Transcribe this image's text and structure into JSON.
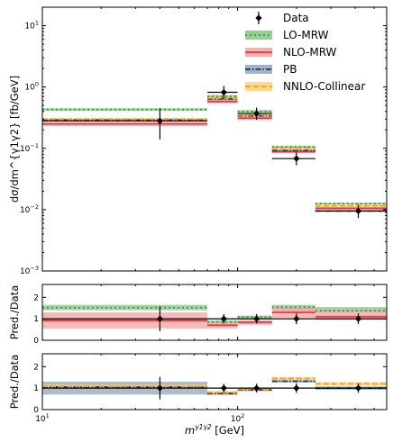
{
  "chart_data": {
    "type": "line",
    "x_scale": "log",
    "xlabel_main": "m",
    "xlabel_super": "γ1γ2",
    "xlabel_unit": " [GeV]",
    "xlim": [
      10,
      580
    ],
    "x_ticks": [
      {
        "value": 10,
        "base": "10",
        "exp": "1"
      },
      {
        "value": 100,
        "base": "10",
        "exp": "2"
      }
    ],
    "bins": [
      [
        5,
        70
      ],
      [
        70,
        100
      ],
      [
        100,
        150
      ],
      [
        150,
        250
      ],
      [
        250,
        580
      ]
    ],
    "data": {
      "name": "Data",
      "x": [
        40,
        85,
        125,
        200,
        415
      ],
      "y": [
        0.28,
        0.82,
        0.37,
        0.068,
        0.0095
      ],
      "err_up": [
        0.17,
        0.22,
        0.09,
        0.018,
        0.0025
      ],
      "err_dn": [
        0.14,
        0.18,
        0.08,
        0.015,
        0.0022
      ]
    },
    "legend": [
      "Data",
      "LO-MRW",
      "NLO-MRW",
      "PB",
      "NNLO-Collinear"
    ],
    "legend_position": "top-right",
    "panels": [
      {
        "id": "main",
        "ylabel": "dσ/dm^{γ1γ2} [fb/GeV]",
        "y_scale": "log",
        "ylim": [
          0.001,
          20
        ],
        "y_ticks": [
          {
            "value": 0.001,
            "base": "10",
            "exp": "−3"
          },
          {
            "value": 0.01,
            "base": "10",
            "exp": "−2"
          },
          {
            "value": 0.1,
            "base": "10",
            "exp": "−1"
          },
          {
            "value": 1,
            "base": "10",
            "exp": "0"
          },
          {
            "value": 10,
            "base": "10",
            "exp": "1"
          }
        ],
        "series": [
          {
            "name": "LO-MRW",
            "color": "#2ca02c",
            "band": "#86c486",
            "dash": "2,3",
            "values": [
              0.43,
              0.7,
              0.4,
              0.105,
              0.0125
            ],
            "lo": [
              0.41,
              0.66,
              0.38,
              0.1,
              0.012
            ],
            "hi": [
              0.45,
              0.74,
              0.42,
              0.11,
              0.013
            ]
          },
          {
            "name": "NLO-MRW",
            "color": "#e8373b",
            "band": "#f7a1a4",
            "dash": "",
            "values": [
              0.25,
              0.58,
              0.31,
              0.088,
              0.0105
            ],
            "lo": [
              0.23,
              0.54,
              0.29,
              0.083,
              0.01
            ],
            "hi": [
              0.27,
              0.62,
              0.33,
              0.093,
              0.011
            ]
          },
          {
            "name": "PB",
            "color": "#1f3a5a",
            "band": "#8fa6bd",
            "dash": "6,2,1.5,2",
            "values": [
              0.29,
              0.64,
              0.34,
              0.092,
              0.0095
            ],
            "lo": [
              0.28,
              0.61,
              0.33,
              0.089,
              0.0092
            ],
            "hi": [
              0.3,
              0.67,
              0.35,
              0.095,
              0.0098
            ]
          },
          {
            "name": "NNLO-Collinear",
            "color": "#ff9f0a",
            "band": "#ffd27a",
            "dash": "6,3",
            "values": [
              0.3,
              0.66,
              0.35,
              0.1,
              0.0115
            ],
            "lo": [
              0.29,
              0.63,
              0.34,
              0.097,
              0.0112
            ],
            "hi": [
              0.31,
              0.69,
              0.36,
              0.103,
              0.0118
            ]
          }
        ]
      },
      {
        "id": "ratio1",
        "ylabel": "Pred./Data",
        "y_scale": "linear",
        "ylim": [
          0,
          2.6
        ],
        "y_ticks": [
          {
            "value": 0,
            "label": "0"
          },
          {
            "value": 1,
            "label": "1"
          },
          {
            "value": 2,
            "label": "2"
          }
        ],
        "reference": 1,
        "data_y": [
          1,
          1,
          1,
          1,
          1
        ],
        "data_err": [
          0.58,
          0.22,
          0.22,
          0.25,
          0.25
        ],
        "series": [
          {
            "name": "LO-MRW",
            "color": "#2ca02c",
            "band": "#86c486",
            "dash": "2,3",
            "values": [
              1.52,
              0.85,
              1.08,
              1.54,
              1.38
            ],
            "lo": [
              1.4,
              0.78,
              1.0,
              1.4,
              1.3
            ],
            "hi": [
              1.65,
              0.93,
              1.15,
              1.65,
              1.55
            ]
          },
          {
            "name": "NLO-MRW",
            "color": "#e8373b",
            "band": "#f7a1a4",
            "dash": "",
            "values": [
              0.92,
              0.7,
              0.84,
              1.3,
              1.1
            ],
            "lo": [
              0.55,
              0.55,
              0.72,
              1.05,
              0.95
            ],
            "hi": [
              1.3,
              0.8,
              0.95,
              1.5,
              1.35
            ]
          }
        ]
      },
      {
        "id": "ratio2",
        "ylabel": "Pred./Data",
        "y_scale": "linear",
        "ylim": [
          0,
          2.6
        ],
        "y_ticks": [
          {
            "value": 0,
            "label": "0"
          },
          {
            "value": 1,
            "label": "1"
          },
          {
            "value": 2,
            "label": "2"
          }
        ],
        "reference": 1,
        "data_y": [
          1,
          1,
          1,
          1,
          1
        ],
        "data_err": [
          0.52,
          0.2,
          0.2,
          0.22,
          0.22
        ],
        "series": [
          {
            "name": "PB",
            "color": "#1f3a5a",
            "band": "#8fa6bd",
            "dash": "6,2,1.5,2",
            "values": [
              1.05,
              0.75,
              0.92,
              1.32,
              1.0
            ],
            "lo": [
              0.7,
              0.68,
              0.86,
              1.26,
              0.92
            ],
            "hi": [
              1.3,
              0.82,
              0.98,
              1.38,
              1.08
            ]
          },
          {
            "name": "NNLO-Collinear",
            "color": "#ff9f0a",
            "band": "#ffd27a",
            "dash": "6,3",
            "values": [
              1.08,
              0.8,
              0.95,
              1.45,
              1.2
            ],
            "lo": [
              1.0,
              0.74,
              0.9,
              1.38,
              1.12
            ],
            "hi": [
              1.16,
              0.86,
              1.0,
              1.52,
              1.28
            ]
          }
        ]
      }
    ]
  }
}
